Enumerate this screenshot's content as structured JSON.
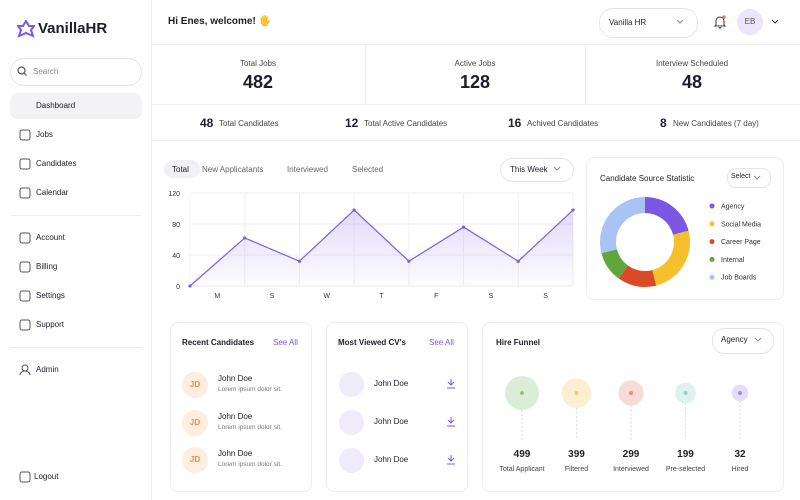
{
  "sidebar": {
    "brand": "VanillaHR",
    "search": "Search",
    "nav": [
      "Dashboard",
      "Jobs",
      "Candidates",
      "Calendar"
    ],
    "account_nav": [
      "Account",
      "Billing",
      "Settings",
      "Support"
    ],
    "admin": "Admin",
    "logout": "Logout"
  },
  "header": {
    "greeting": "Hi Enes, welcome! 🖐",
    "workspace": "Vanilla HR",
    "avatar": "EB"
  },
  "stats": [
    {
      "label": "Total Jobs",
      "value": 482
    },
    {
      "label": "Active Jobs",
      "value": 128
    },
    {
      "label": "Interview Scheduled",
      "value": 48
    }
  ],
  "summary": [
    {
      "value": 48,
      "label": "Total Candidates"
    },
    {
      "value": 12,
      "label": "Total Active Candidates"
    },
    {
      "value": 16,
      "label": "Achived Candidates"
    },
    {
      "value": 8,
      "label": "New Candidates (7 day)"
    }
  ],
  "activity_chart": {
    "type": "line",
    "tabs": [
      "Total",
      "New Applicatants",
      "Interviewed",
      "Selected"
    ],
    "period": "This Week",
    "categories": [
      null,
      "M",
      "S",
      "W",
      "T",
      "F",
      "S",
      "S"
    ],
    "values": [
      0,
      62,
      32,
      98,
      32,
      76,
      32,
      98
    ],
    "color": "#7b5ce6",
    "ylim": [
      0,
      120
    ],
    "yticks": [
      0,
      40,
      80,
      120
    ],
    "grid": true
  },
  "source_chart": {
    "type": "pie",
    "title": "Candidate Source Statistic",
    "filter": "Select",
    "categories": [
      "Agency",
      "Social Media",
      "Career Page",
      "Internal",
      "Job Boards"
    ],
    "values": [
      21,
      25,
      14,
      11,
      29
    ],
    "colors": [
      "#7b57e4",
      "#f6c02c",
      "#d94a25",
      "#5fa63c",
      "#a9c3f5"
    ]
  },
  "recent_candidates": {
    "title": "Recent Candidates",
    "action": "See All",
    "items": [
      {
        "initials": "JD",
        "name": "John Doe",
        "note": "Lorem ipsum dolor sit."
      },
      {
        "initials": "JD",
        "name": "John Doe",
        "note": "Lorem ipsum dolor sit."
      },
      {
        "initials": "JD",
        "name": "John Doe",
        "note": "Lorem ipsum dolor sit."
      }
    ]
  },
  "most_viewed": {
    "title": "Most Viewed CV's",
    "action": "See All",
    "items": [
      "John Doe",
      "John Doe",
      "John Doe"
    ]
  },
  "hire_funnel": {
    "title": "Hire Funnel",
    "filter": "Agency",
    "stages": [
      {
        "value": 499,
        "label": "Total Applicant",
        "color": "#8cc47a"
      },
      {
        "value": 399,
        "label": "Filtered",
        "color": "#f3c96a"
      },
      {
        "value": 299,
        "label": "Interviewed",
        "color": "#e68c78"
      },
      {
        "value": 199,
        "label": "Pre-selected",
        "color": "#8ed0d0"
      },
      {
        "value": 32,
        "label": "Hired",
        "color": "#a48ae8"
      }
    ]
  }
}
